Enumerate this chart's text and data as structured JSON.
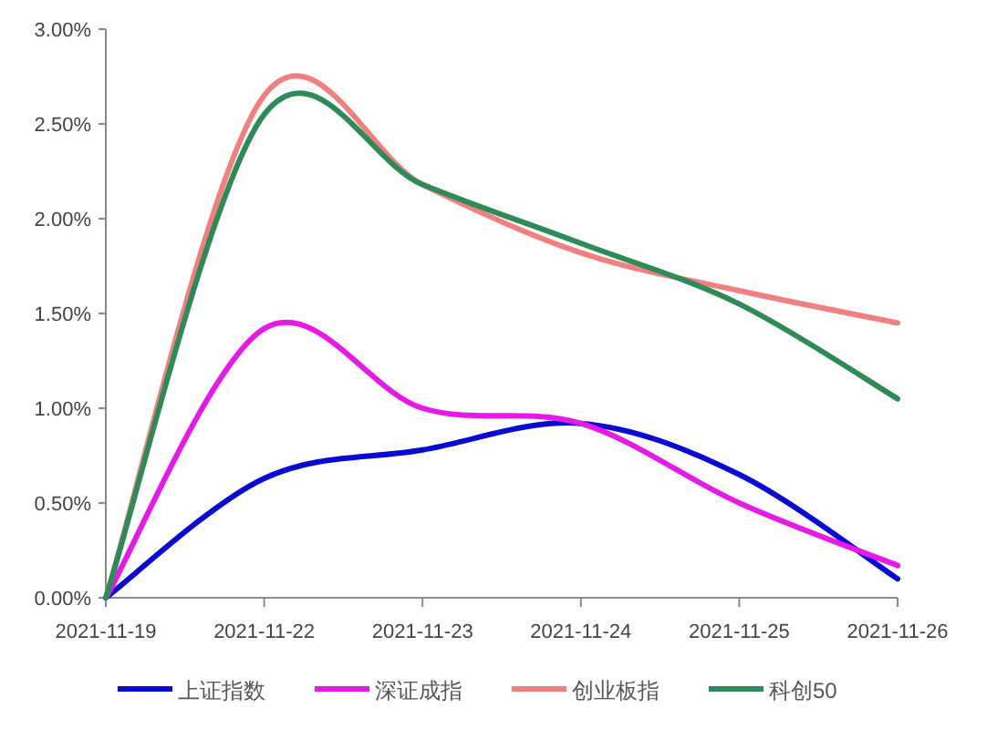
{
  "chart_data": {
    "type": "line",
    "categories": [
      "2021-11-19",
      "2021-11-22",
      "2021-11-23",
      "2021-11-24",
      "2021-11-25",
      "2021-11-26"
    ],
    "series": [
      {
        "name": "上证指数",
        "color": "#0a0ad2",
        "values": [
          0,
          0.63,
          0.78,
          0.92,
          0.65,
          0.1
        ]
      },
      {
        "name": "深证成指",
        "color": "#e619e6",
        "values": [
          0,
          1.42,
          1.0,
          0.92,
          0.5,
          0.17
        ]
      },
      {
        "name": "创业板指",
        "color": "#f08080",
        "values": [
          0,
          2.65,
          2.18,
          1.82,
          1.62,
          1.45
        ]
      },
      {
        "name": "科创50",
        "color": "#2e8b57",
        "values": [
          0,
          2.55,
          2.18,
          1.87,
          1.55,
          1.05
        ]
      }
    ],
    "ylim": [
      0,
      3
    ],
    "yticks": [
      {
        "value": 0,
        "label": "0.00%"
      },
      {
        "value": 0.5,
        "label": "0.50%"
      },
      {
        "value": 1,
        "label": "1.00%"
      },
      {
        "value": 1.5,
        "label": "1.50%"
      },
      {
        "value": 2,
        "label": "2.00%"
      },
      {
        "value": 2.5,
        "label": "2.50%"
      },
      {
        "value": 3,
        "label": "3.00%"
      }
    ],
    "legend": "bottom",
    "grid": false,
    "marker": "none",
    "line_style": "solid"
  }
}
